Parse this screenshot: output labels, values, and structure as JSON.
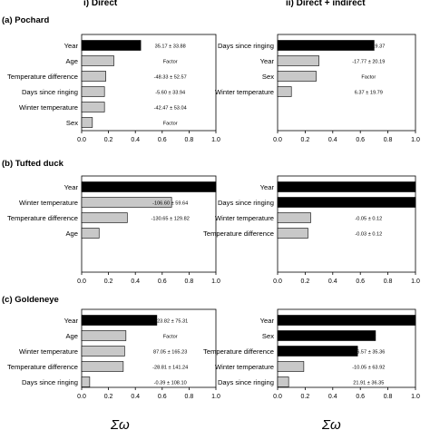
{
  "column_titles": [
    "i) Direct",
    "ii) Direct + indirect"
  ],
  "xlabel": "Σω",
  "chart_data": [
    {
      "type": "bar",
      "orientation": "horizontal",
      "title": "(a) Pochard",
      "column": "i) Direct",
      "xlim": [
        0,
        1.0
      ],
      "xticks": [
        "0.0",
        "0.2",
        "0.4",
        "0.6",
        "0.8",
        "1.0"
      ],
      "categories": [
        "Year",
        "Age",
        "Temperature difference",
        "Days since ringing",
        "Winter temperature",
        "Sex"
      ],
      "values": [
        0.44,
        0.24,
        0.18,
        0.17,
        0.17,
        0.08
      ],
      "annotations": [
        "35.17 ± 33.88",
        "Factor",
        "-48.33 ± 52.57",
        "-5.60 ± 33.94",
        "-42.47 ± 53.04",
        "Factor"
      ],
      "bar_colors": [
        "#000000",
        "#c8c8c8",
        "#c8c8c8",
        "#c8c8c8",
        "#c8c8c8",
        "#c8c8c8"
      ],
      "bold": [
        false,
        false,
        false,
        false,
        false,
        false
      ]
    },
    {
      "type": "bar",
      "orientation": "horizontal",
      "title": "",
      "column": "ii) Direct + indirect",
      "xlim": [
        0,
        1.0
      ],
      "xticks": [
        "0.0",
        "0.2",
        "0.4",
        "0.6",
        "0.8",
        "1.0"
      ],
      "categories": [
        "Days since ringing",
        "Year",
        "Sex",
        "Winter temperature"
      ],
      "values": [
        0.7,
        0.3,
        0.28,
        0.1
      ],
      "annotations": [
        "-36.12 ± 19.37",
        "-17.77 ± 20.19",
        "Factor",
        "6.37 ± 19.79"
      ],
      "bar_colors": [
        "#000000",
        "#c8c8c8",
        "#c8c8c8",
        "#c8c8c8"
      ],
      "bold": [
        false,
        false,
        false,
        false
      ]
    },
    {
      "type": "bar",
      "orientation": "horizontal",
      "title": "(b) Tufted duck",
      "column": "i) Direct",
      "xlim": [
        0,
        1.0
      ],
      "xticks": [
        "0.0",
        "0.2",
        "0.4",
        "0.6",
        "0.8",
        "1.0"
      ],
      "categories": [
        "Year",
        "Winter temperature",
        "Temperature difference",
        "Age"
      ],
      "values": [
        1.0,
        0.67,
        0.34,
        0.13
      ],
      "annotations": [
        "206.72 ± 59.94***",
        "-106.60 ± 59.64",
        "-130.65 ± 129.82",
        ""
      ],
      "bar_colors": [
        "#000000",
        "#c8c8c8",
        "#c8c8c8",
        "#c8c8c8"
      ],
      "bold": [
        true,
        false,
        false,
        false
      ]
    },
    {
      "type": "bar",
      "orientation": "horizontal",
      "title": "",
      "column": "ii) Direct + indirect",
      "xlim": [
        0,
        1.0
      ],
      "xticks": [
        "0.0",
        "0.2",
        "0.4",
        "0.6",
        "0.8",
        "1.0"
      ],
      "categories": [
        "Year",
        "Days since ringing",
        "Winter temperature",
        "Temperature difference"
      ],
      "values": [
        1.0,
        1.0,
        0.24,
        0.22
      ],
      "annotations": [
        "0.17 ± 0.06**",
        "-0.18 ± 0.06**",
        "-0.05 ± 0.12",
        "-0.03 ± 0.12"
      ],
      "bar_colors": [
        "#000000",
        "#000000",
        "#c8c8c8",
        "#c8c8c8"
      ],
      "bold": [
        true,
        true,
        false,
        false
      ]
    },
    {
      "type": "bar",
      "orientation": "horizontal",
      "title": "(c) Goldeneye",
      "column": "i) Direct",
      "xlim": [
        0,
        1.0
      ],
      "xticks": [
        "0.0",
        "0.2",
        "0.4",
        "0.6",
        "0.8",
        "1.0"
      ],
      "categories": [
        "Year",
        "Age",
        "Winter temperature",
        "Temperature difference",
        "Days since ringing"
      ],
      "values": [
        0.56,
        0.33,
        0.32,
        0.31,
        0.06
      ],
      "annotations": [
        "-123.82 ± 75.31",
        "Factor",
        "87.05 ± 165.23",
        "-28.81 ± 141.24",
        "-0.39 ± 108.10"
      ],
      "bar_colors": [
        "#000000",
        "#c8c8c8",
        "#c8c8c8",
        "#c8c8c8",
        "#c8c8c8"
      ],
      "bold": [
        false,
        false,
        false,
        false,
        false
      ]
    },
    {
      "type": "bar",
      "orientation": "horizontal",
      "title": "",
      "column": "ii) Direct + indirect",
      "xlim": [
        0,
        1.0
      ],
      "xticks": [
        "0.0",
        "0.2",
        "0.4",
        "0.6",
        "0.8",
        "1.0"
      ],
      "categories": [
        "Year",
        "Sex",
        "Temperature difference",
        "Winter temperature",
        "Days since ringing"
      ],
      "values": [
        1.0,
        0.71,
        0.58,
        0.19,
        0.08
      ],
      "annotations": [
        "-76.24 ± 36.49**",
        "Factor",
        "-56.57 ± 35.36",
        "-10.05 ± 63.92",
        "21.91 ± 36.35"
      ],
      "bar_colors": [
        "#000000",
        "#000000",
        "#000000",
        "#c8c8c8",
        "#c8c8c8"
      ],
      "bold": [
        true,
        false,
        false,
        false,
        false
      ]
    }
  ]
}
